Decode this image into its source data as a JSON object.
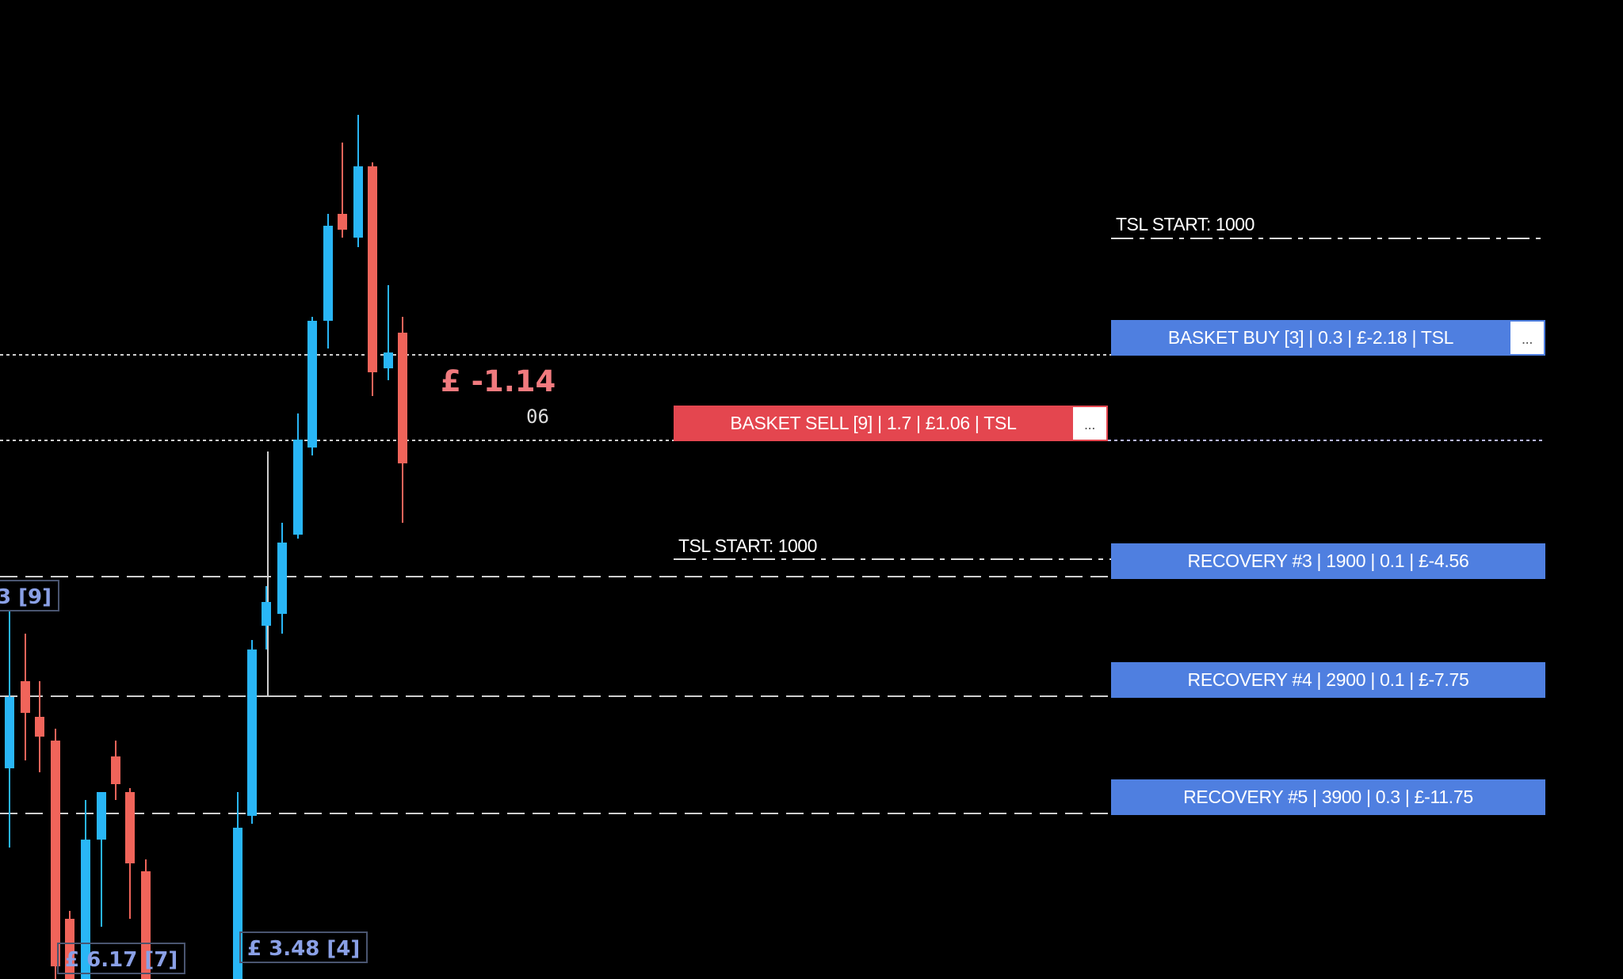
{
  "trade_panels": {
    "basket_buy": {
      "label": "BASKET BUY [3] | 0.3 | £-2.18 | TSL",
      "menu": "..."
    },
    "basket_sell": {
      "label": "BASKET SELL [9] | 1.7 | £1.06 | TSL",
      "menu": "..."
    },
    "recovery_3": {
      "label": "RECOVERY #3 | 1900 | 0.1 | £-4.56"
    },
    "recovery_4": {
      "label": "RECOVERY #4 | 2900 | 0.1 | £-7.75"
    },
    "recovery_5": {
      "label": "RECOVERY #5 | 3900 | 0.3 | £-11.75"
    }
  },
  "tsl_labels": {
    "upper": "TSL START: 1000",
    "lower": "TSL START: 1000"
  },
  "overlay": {
    "floating_profit": "£ -1.14",
    "bar_timer": "06"
  },
  "chart_tags": {
    "left_edge": "3 [9]",
    "bottom_left": "£ 6.17 [7]",
    "bottom_mid": "£ 3.48 [4]"
  },
  "colors": {
    "background": "#000000",
    "bull_candle": "#29b6f6",
    "bear_candle": "#f0645a",
    "buy_panel": "#4f7fe0",
    "sell_panel": "#e4464f",
    "loss_text": "#f07a7e",
    "tag_text": "#8aa0e6"
  }
}
